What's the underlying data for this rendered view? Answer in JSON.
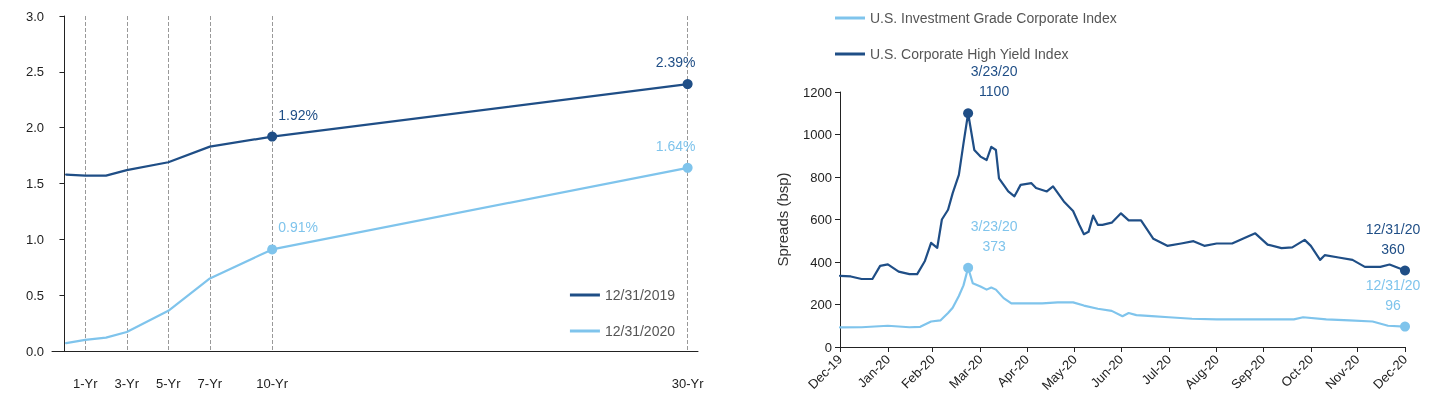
{
  "chart_data": [
    {
      "type": "line",
      "x": [
        0.08,
        1,
        2,
        3,
        5,
        7,
        10,
        30
      ],
      "xlim": [
        -0.6,
        30.5
      ],
      "xticks": [
        {
          "value": 1,
          "label": "1-Yr"
        },
        {
          "value": 3,
          "label": "3-Yr"
        },
        {
          "value": 5,
          "label": "5-Yr"
        },
        {
          "value": 7,
          "label": "7-Yr"
        },
        {
          "value": 10,
          "label": "10-Yr"
        },
        {
          "value": 30,
          "label": "30-Yr"
        }
      ],
      "ylim": [
        0,
        3
      ],
      "yticks": [
        {
          "value": 0,
          "label": "0.0"
        },
        {
          "value": 0.5,
          "label": "0.5"
        },
        {
          "value": 1,
          "label": "1.0"
        },
        {
          "value": 1.5,
          "label": "1.5"
        },
        {
          "value": 2,
          "label": "2.0"
        },
        {
          "value": 2.5,
          "label": "2.5"
        },
        {
          "value": 3,
          "label": "3.0"
        }
      ],
      "grid": "x",
      "legend": "bottom right",
      "series": [
        {
          "name": "12/31/2019",
          "color": "#1f4e86",
          "values": [
            1.58,
            1.57,
            1.57,
            1.62,
            1.69,
            1.83,
            1.92,
            2.39
          ],
          "value_labels": [
            null,
            null,
            null,
            null,
            null,
            null,
            "1.92%",
            "2.39%"
          ]
        },
        {
          "name": "12/31/2020",
          "color": "#7fc4ec",
          "values": [
            0.07,
            0.1,
            0.12,
            0.17,
            0.36,
            0.65,
            0.91,
            1.64
          ],
          "value_labels": [
            null,
            null,
            null,
            null,
            null,
            null,
            "0.91%",
            "1.64%"
          ]
        }
      ]
    },
    {
      "type": "line",
      "ylabel": "Spreads (bsp)",
      "xlim": [
        "2019-12-31",
        "2020-12-31"
      ],
      "xticks": [
        {
          "value": "2019-12-31",
          "label": "Dec-19"
        },
        {
          "value": "2020-01-31",
          "label": "Jan-20"
        },
        {
          "value": "2020-02-29",
          "label": "Feb-20"
        },
        {
          "value": "2020-03-31",
          "label": "Mar-20"
        },
        {
          "value": "2020-04-30",
          "label": "Apr-20"
        },
        {
          "value": "2020-05-31",
          "label": "May-20"
        },
        {
          "value": "2020-06-30",
          "label": "Jun-20"
        },
        {
          "value": "2020-07-31",
          "label": "Jul-20"
        },
        {
          "value": "2020-08-31",
          "label": "Aug-20"
        },
        {
          "value": "2020-09-30",
          "label": "Sep-20"
        },
        {
          "value": "2020-10-31",
          "label": "Oct-20"
        },
        {
          "value": "2020-11-30",
          "label": "Nov-20"
        },
        {
          "value": "2020-12-31",
          "label": "Dec-20"
        }
      ],
      "ylim": [
        0,
        1200
      ],
      "yticks": [
        0,
        200,
        400,
        600,
        800,
        1000,
        1200
      ],
      "grid": false,
      "legend": "top left",
      "series": [
        {
          "name": "U.S. Investment Grade Corporate Index",
          "color": "#7fc4ec",
          "x": [
            "2019-12-31",
            "2020-01-14",
            "2020-01-31",
            "2020-02-14",
            "2020-02-21",
            "2020-02-28",
            "2020-03-05",
            "2020-03-10",
            "2020-03-13",
            "2020-03-17",
            "2020-03-20",
            "2020-03-23",
            "2020-03-26",
            "2020-03-31",
            "2020-04-04",
            "2020-04-07",
            "2020-04-10",
            "2020-04-15",
            "2020-04-20",
            "2020-04-30",
            "2020-05-10",
            "2020-05-20",
            "2020-05-30",
            "2020-06-06",
            "2020-06-15",
            "2020-06-24",
            "2020-07-01",
            "2020-07-05",
            "2020-07-10",
            "2020-07-20",
            "2020-07-31",
            "2020-08-15",
            "2020-08-31",
            "2020-09-30",
            "2020-10-20",
            "2020-10-26",
            "2020-11-10",
            "2020-11-25",
            "2020-12-10",
            "2020-12-20",
            "2020-12-31"
          ],
          "values": [
            92,
            93,
            100,
            93,
            95,
            120,
            125,
            160,
            185,
            240,
            290,
            373,
            300,
            285,
            270,
            280,
            270,
            230,
            205,
            205,
            205,
            210,
            210,
            195,
            180,
            170,
            145,
            160,
            150,
            145,
            140,
            133,
            130,
            130,
            130,
            140,
            130,
            125,
            120,
            100,
            96
          ],
          "value_labels": [
            null,
            null,
            null,
            null,
            null,
            null,
            null,
            null,
            null,
            null,
            null,
            "3/23/20\n373",
            null,
            null,
            null,
            null,
            null,
            null,
            null,
            null,
            null,
            null,
            null,
            null,
            null,
            null,
            null,
            null,
            null,
            null,
            null,
            null,
            null,
            null,
            null,
            null,
            null,
            null,
            null,
            null,
            "12/31/20\n96"
          ]
        },
        {
          "name": "U.S. Corporate High Yield Index",
          "color": "#1f4e86",
          "x": [
            "2019-12-31",
            "2020-01-07",
            "2020-01-14",
            "2020-01-21",
            "2020-01-26",
            "2020-01-31",
            "2020-02-07",
            "2020-02-14",
            "2020-02-19",
            "2020-02-24",
            "2020-02-28",
            "2020-03-03",
            "2020-03-06",
            "2020-03-10",
            "2020-03-13",
            "2020-03-17",
            "2020-03-20",
            "2020-03-23",
            "2020-03-27",
            "2020-03-31",
            "2020-04-04",
            "2020-04-07",
            "2020-04-10",
            "2020-04-12",
            "2020-04-18",
            "2020-04-22",
            "2020-04-26",
            "2020-05-03",
            "2020-05-06",
            "2020-05-13",
            "2020-05-17",
            "2020-05-24",
            "2020-05-30",
            "2020-06-03",
            "2020-06-06",
            "2020-06-09",
            "2020-06-12",
            "2020-06-15",
            "2020-06-18",
            "2020-06-24",
            "2020-06-30",
            "2020-07-05",
            "2020-07-13",
            "2020-07-21",
            "2020-07-30",
            "2020-08-08",
            "2020-08-16",
            "2020-08-23",
            "2020-08-31",
            "2020-09-10",
            "2020-09-18",
            "2020-09-25",
            "2020-10-03",
            "2020-10-12",
            "2020-10-19",
            "2020-10-27",
            "2020-10-31",
            "2020-11-06",
            "2020-11-09",
            "2020-11-18",
            "2020-11-27",
            "2020-12-05",
            "2020-12-15",
            "2020-12-21",
            "2020-12-31"
          ],
          "values": [
            335,
            332,
            320,
            320,
            382,
            389,
            355,
            343,
            343,
            405,
            490,
            467,
            600,
            646,
            724,
            810,
            958,
            1100,
            927,
            896,
            880,
            942,
            927,
            794,
            732,
            709,
            763,
            771,
            748,
            732,
            756,
            685,
            640,
            575,
            531,
            542,
            618,
            575,
            575,
            585,
            629,
            596,
            596,
            509,
            476,
            487,
            498,
            476,
            487,
            487,
            513,
            535,
            482,
            465,
            469,
            504,
            476,
            410,
            432,
            421,
            410,
            377,
            377,
            388,
            360
          ],
          "value_labels": [
            null,
            null,
            null,
            null,
            null,
            null,
            null,
            null,
            null,
            null,
            null,
            null,
            null,
            null,
            null,
            null,
            null,
            "3/23/20\n1100",
            null,
            null,
            null,
            null,
            null,
            null,
            null,
            null,
            null,
            null,
            null,
            null,
            null,
            null,
            null,
            null,
            null,
            null,
            null,
            null,
            null,
            null,
            null,
            null,
            null,
            null,
            null,
            null,
            null,
            null,
            null,
            null,
            null,
            null,
            null,
            null,
            null,
            null,
            null,
            null,
            null,
            null,
            null,
            null,
            null,
            null,
            "12/31/20\n360"
          ]
        }
      ]
    }
  ]
}
